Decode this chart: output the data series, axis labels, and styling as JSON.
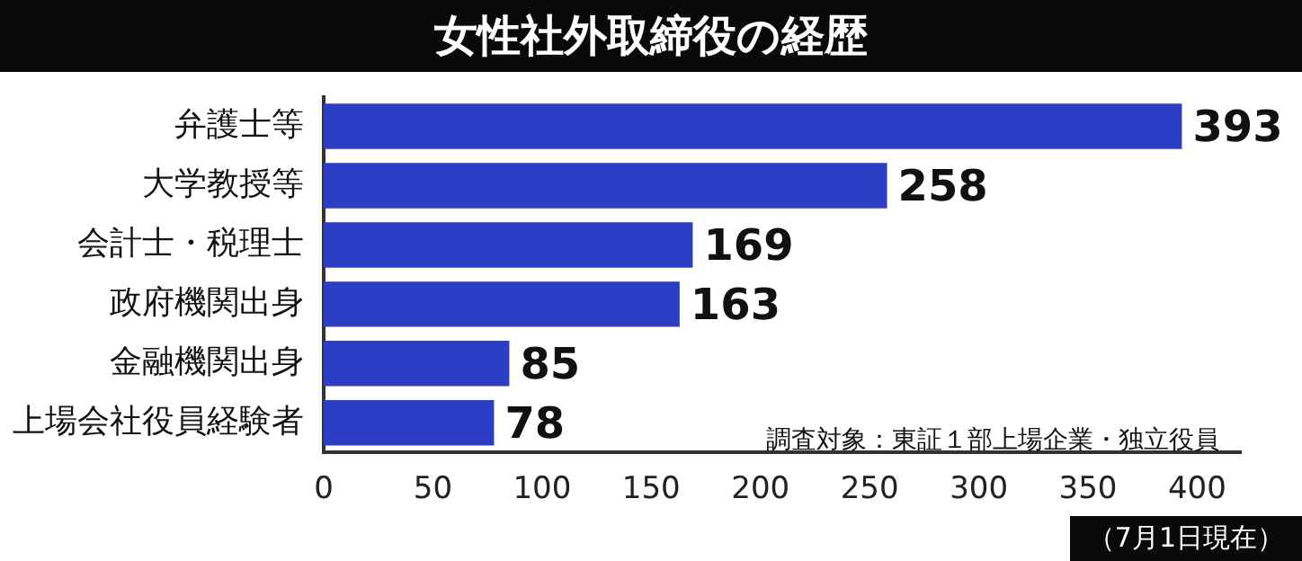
{
  "chart_data": {
    "type": "bar",
    "orientation": "horizontal",
    "title": "女性社外取締役の経歴",
    "categories": [
      "弁護士等",
      "大学教授等",
      "会計士・税理士",
      "政府機関出身",
      "金融機関出身",
      "上場会社役員経験者"
    ],
    "values": [
      393,
      258,
      169,
      163,
      85,
      78
    ],
    "color": "#2b3ec4",
    "xlim": [
      0,
      420
    ],
    "xticks": [
      0,
      50,
      100,
      150,
      200,
      250,
      300,
      350,
      400
    ],
    "grid": false,
    "legend": false,
    "data_labels": true,
    "annotations": [
      "調査対象：東証１部上場企業・独立役員",
      "（7月1日現在）"
    ]
  }
}
